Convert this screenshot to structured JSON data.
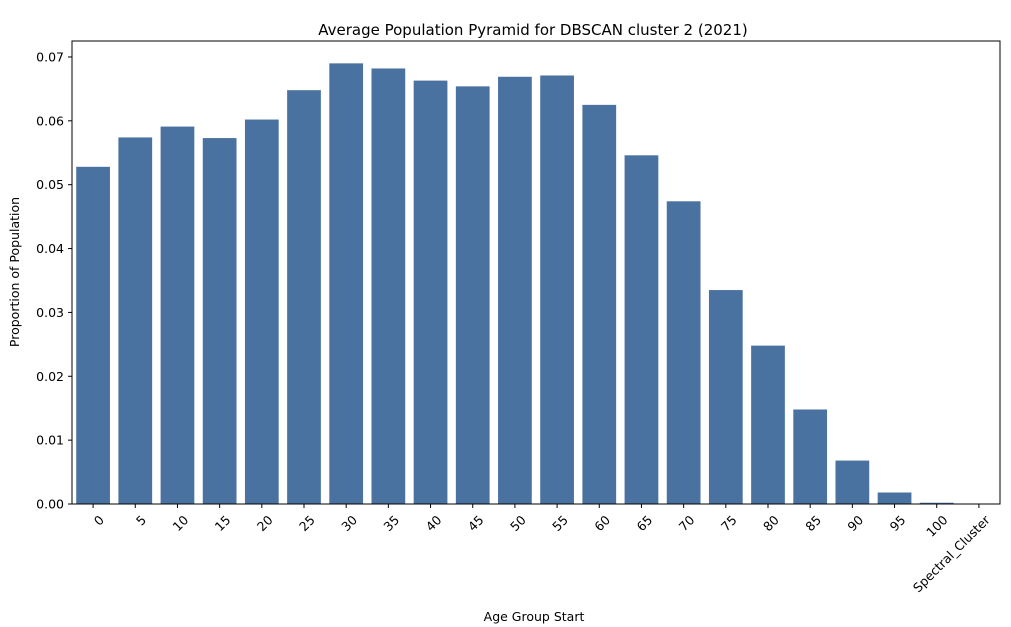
{
  "chart_data": {
    "type": "bar",
    "title": "Average Population Pyramid for DBSCAN cluster 2 (2021)",
    "xlabel": "Age Group Start",
    "ylabel": "Proportion of Population",
    "categories": [
      "0",
      "5",
      "10",
      "15",
      "20",
      "25",
      "30",
      "35",
      "40",
      "45",
      "50",
      "55",
      "60",
      "65",
      "70",
      "75",
      "80",
      "85",
      "90",
      "95",
      "100",
      "Spectral_Cluster"
    ],
    "values": [
      0.0528,
      0.0574,
      0.0591,
      0.0573,
      0.0602,
      0.0648,
      0.069,
      0.0682,
      0.0663,
      0.0654,
      0.0669,
      0.0671,
      0.0625,
      0.0546,
      0.0474,
      0.0335,
      0.0248,
      0.0148,
      0.0068,
      0.0018,
      0.0002,
      0
    ],
    "ylim": [
      0,
      0.0725
    ],
    "yticks": [
      "0.00",
      "0.01",
      "0.02",
      "0.03",
      "0.04",
      "0.05",
      "0.06",
      "0.07"
    ],
    "bar_color": "#4a72a0",
    "grid": false,
    "legend": "none"
  }
}
